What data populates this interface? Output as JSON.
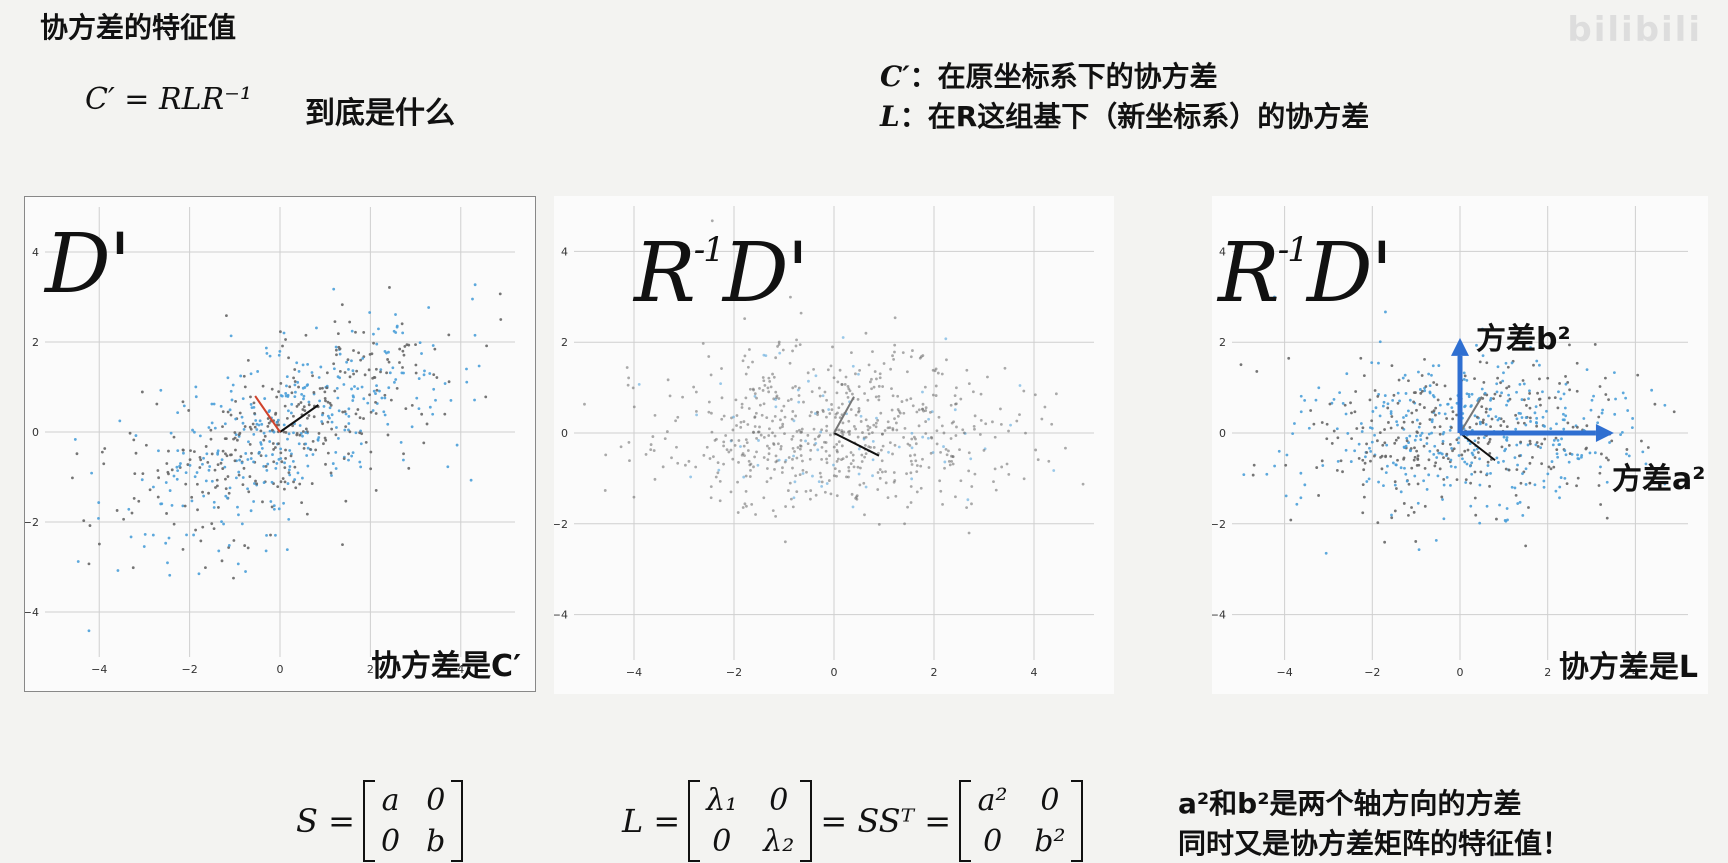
{
  "title": "协方差的特征值",
  "formula": "C′ = RLR⁻¹",
  "question": "到底是什么",
  "definitions": [
    {
      "symbol": "C′",
      "text": "：在原坐标系下的协方差"
    },
    {
      "symbol": "L",
      "text": "：在R这组基下（新坐标系）的协方差"
    }
  ],
  "panels": [
    {
      "label": "D'",
      "caption": "协方差是C′"
    },
    {
      "label_sup": "-1",
      "label_r": "R",
      "label_d": "D'"
    },
    {
      "label_sup": "-1",
      "label_r": "R",
      "label_d": "D'",
      "caption": "协方差是L",
      "axis_b": "方差b²",
      "axis_a": "方差a²"
    }
  ],
  "ticks": {
    "x": [
      "−4",
      "−2",
      "0",
      "2",
      "4"
    ],
    "y": [
      "4",
      "2",
      "0",
      "−2",
      "−4"
    ]
  },
  "bottom": {
    "s_lhs": "S =",
    "s_cells": [
      "a",
      "0",
      "0",
      "b"
    ],
    "l_lhs": "L =",
    "l_cells": [
      "λ₁",
      "0",
      "0",
      "λ₂"
    ],
    "l_mid": "= SSᵀ =",
    "l_cells2": [
      "a²",
      "0",
      "0",
      "b²"
    ],
    "note1": "a²和b²是两个轴方向的方差",
    "note2": "同时又是协方差矩阵的特征值！"
  },
  "watermark": "bilibili",
  "colors": {
    "accent_blue": "#2f6fd1",
    "red_vec": "#d0432c",
    "point_blue": "#4a9fd8",
    "point_gray": "#666666"
  }
}
